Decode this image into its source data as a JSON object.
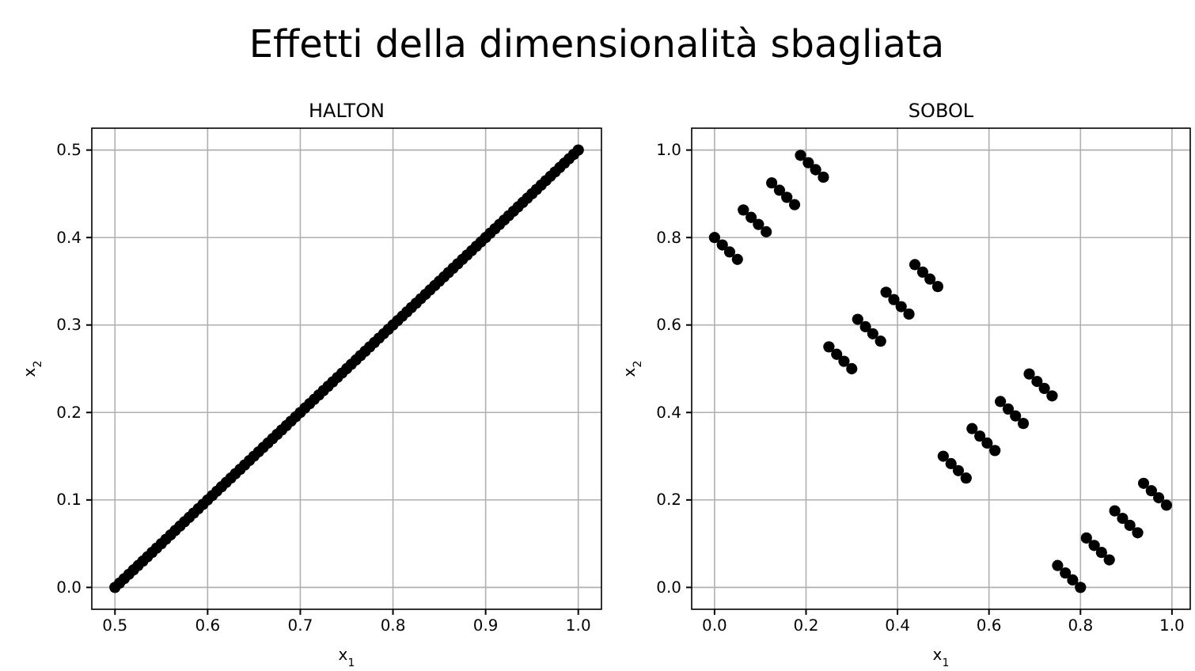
{
  "chart_data": [
    {
      "type": "scatter",
      "annotations": [
        "Effetti della dimensionalità sbagliata"
      ],
      "title": "HALTON",
      "xlabel": "x$_{1}$",
      "ylabel": "x$_{2}$",
      "xlim": [
        0.475,
        1.025
      ],
      "ylim": [
        -0.025,
        0.525
      ],
      "xticks": [
        {
          "value": 0.5,
          "label": "0.5"
        },
        {
          "value": 0.6,
          "label": "0.6"
        },
        {
          "value": 0.7,
          "label": "0.7"
        },
        {
          "value": 0.8,
          "label": "0.8"
        },
        {
          "value": 0.9,
          "label": "0.9"
        },
        {
          "value": 1.0,
          "label": "1.0"
        }
      ],
      "yticks": [
        {
          "value": 0,
          "label": "0.0"
        },
        {
          "value": 0.1,
          "label": "0.1"
        },
        {
          "value": 0.2,
          "label": "0.2"
        },
        {
          "value": 0.3,
          "label": "0.3"
        },
        {
          "value": 0.4,
          "label": "0.4"
        },
        {
          "value": 0.5,
          "label": "0.5"
        }
      ],
      "grid": true,
      "marker": "circle",
      "series": [
        {
          "color": "#000000",
          "x": [
            0.5,
            0.505,
            0.51,
            0.515,
            0.52,
            0.525,
            0.53,
            0.535,
            0.54,
            0.545,
            0.55,
            0.555,
            0.56,
            0.565,
            0.57,
            0.575,
            0.58,
            0.585,
            0.59,
            0.595,
            0.6,
            0.605,
            0.61,
            0.615,
            0.62,
            0.625,
            0.63,
            0.635,
            0.64,
            0.645,
            0.65,
            0.655,
            0.66,
            0.665,
            0.67,
            0.675,
            0.68,
            0.685,
            0.69,
            0.695,
            0.7,
            0.705,
            0.71,
            0.715,
            0.72,
            0.725,
            0.73,
            0.735,
            0.74,
            0.745,
            0.75,
            0.755,
            0.76,
            0.765,
            0.77,
            0.775,
            0.78,
            0.785,
            0.79,
            0.795,
            0.8,
            0.805,
            0.81,
            0.815,
            0.82,
            0.825,
            0.83,
            0.835,
            0.84,
            0.845,
            0.85,
            0.855,
            0.86,
            0.865,
            0.87,
            0.875,
            0.88,
            0.885,
            0.89,
            0.895,
            0.9,
            0.905,
            0.91,
            0.915,
            0.92,
            0.925,
            0.93,
            0.935,
            0.94,
            0.945,
            0.95,
            0.955,
            0.96,
            0.965,
            0.97,
            0.975,
            0.98,
            0.985,
            0.99,
            0.995,
            1.0
          ],
          "values": [
            0,
            0.005,
            0.01,
            0.015,
            0.02,
            0.025,
            0.03,
            0.035,
            0.04,
            0.045,
            0.05,
            0.055,
            0.06,
            0.065,
            0.07,
            0.075,
            0.08,
            0.085,
            0.09,
            0.095,
            0.1,
            0.105,
            0.11,
            0.115,
            0.12,
            0.125,
            0.13,
            0.135,
            0.14,
            0.145,
            0.15,
            0.155,
            0.16,
            0.165,
            0.17,
            0.175,
            0.18,
            0.185,
            0.19,
            0.195,
            0.2,
            0.205,
            0.21,
            0.215,
            0.22,
            0.225,
            0.23,
            0.235,
            0.24,
            0.245,
            0.25,
            0.255,
            0.26,
            0.265,
            0.27,
            0.275,
            0.28,
            0.285,
            0.29,
            0.295,
            0.3,
            0.305,
            0.31,
            0.315,
            0.32,
            0.325,
            0.33,
            0.335,
            0.34,
            0.345,
            0.35,
            0.355,
            0.36,
            0.365,
            0.37,
            0.375,
            0.38,
            0.385,
            0.39,
            0.395,
            0.4,
            0.405,
            0.41,
            0.415,
            0.42,
            0.425,
            0.43,
            0.435,
            0.44,
            0.445,
            0.45,
            0.455,
            0.46,
            0.465,
            0.47,
            0.475,
            0.48,
            0.485,
            0.49,
            0.495,
            0.5
          ]
        }
      ]
    },
    {
      "type": "scatter",
      "title": "SOBOL",
      "xlabel": "x$_{1}$",
      "ylabel": "x$_{2}$",
      "xlim": [
        -0.05,
        1.04
      ],
      "ylim": [
        -0.05,
        1.05
      ],
      "xticks": [
        {
          "value": 0,
          "label": "0.0"
        },
        {
          "value": 0.2,
          "label": "0.2"
        },
        {
          "value": 0.4,
          "label": "0.4"
        },
        {
          "value": 0.6,
          "label": "0.6"
        },
        {
          "value": 0.8,
          "label": "0.8"
        },
        {
          "value": 1.0,
          "label": "1.0"
        }
      ],
      "yticks": [
        {
          "value": 0,
          "label": "0.0"
        },
        {
          "value": 0.2,
          "label": "0.2"
        },
        {
          "value": 0.4,
          "label": "0.4"
        },
        {
          "value": 0.6,
          "label": "0.6"
        },
        {
          "value": 0.8,
          "label": "0.8"
        },
        {
          "value": 1.0,
          "label": "1.0"
        }
      ],
      "grid": true,
      "marker": "circle",
      "series": [
        {
          "color": "#000000",
          "x": [
            0,
            0.017,
            0.033,
            0.05,
            0.063,
            0.08,
            0.096,
            0.113,
            0.125,
            0.142,
            0.158,
            0.175,
            0.188,
            0.205,
            0.221,
            0.238,
            0.25,
            0.267,
            0.283,
            0.3,
            0.313,
            0.33,
            0.346,
            0.363,
            0.375,
            0.392,
            0.408,
            0.425,
            0.438,
            0.455,
            0.471,
            0.488,
            0.5,
            0.517,
            0.533,
            0.55,
            0.563,
            0.58,
            0.596,
            0.613,
            0.625,
            0.642,
            0.658,
            0.675,
            0.688,
            0.705,
            0.721,
            0.738,
            0.75,
            0.767,
            0.783,
            0.8,
            0.813,
            0.83,
            0.846,
            0.863,
            0.875,
            0.892,
            0.908,
            0.925,
            0.938,
            0.955,
            0.971,
            0.988
          ],
          "values": [
            0.8,
            0.783,
            0.767,
            0.75,
            0.863,
            0.846,
            0.83,
            0.813,
            0.925,
            0.908,
            0.892,
            0.875,
            0.988,
            0.971,
            0.955,
            0.938,
            0.55,
            0.533,
            0.517,
            0.5,
            0.613,
            0.596,
            0.58,
            0.563,
            0.675,
            0.658,
            0.642,
            0.625,
            0.738,
            0.721,
            0.705,
            0.688,
            0.3,
            0.283,
            0.267,
            0.25,
            0.363,
            0.346,
            0.33,
            0.313,
            0.425,
            0.408,
            0.392,
            0.375,
            0.488,
            0.471,
            0.455,
            0.438,
            0.05,
            0.033,
            0.017,
            0,
            0.113,
            0.096,
            0.08,
            0.063,
            0.175,
            0.158,
            0.142,
            0.125,
            0.238,
            0.221,
            0.205,
            0.188
          ]
        }
      ]
    }
  ]
}
